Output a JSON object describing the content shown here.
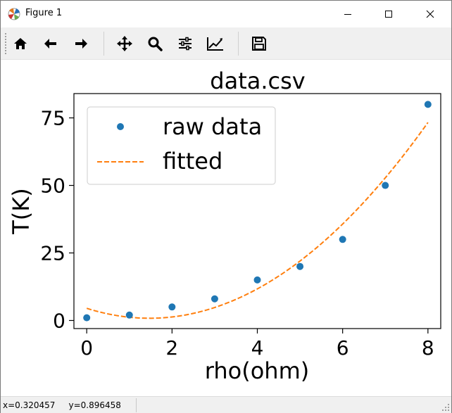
{
  "window": {
    "title": "Figure 1"
  },
  "toolbar": {
    "items": [
      {
        "name": "home-icon",
        "tooltip": "Home"
      },
      {
        "name": "back-arrow-icon",
        "tooltip": "Back"
      },
      {
        "name": "forward-arrow-icon",
        "tooltip": "Forward"
      },
      {
        "name": "pan-icon",
        "tooltip": "Pan"
      },
      {
        "name": "zoom-icon",
        "tooltip": "Zoom"
      },
      {
        "name": "configure-subplots-icon",
        "tooltip": "Subplots"
      },
      {
        "name": "edit-axis-icon",
        "tooltip": "Customize"
      },
      {
        "name": "save-icon",
        "tooltip": "Save"
      }
    ]
  },
  "status": {
    "text": "x=0.320457     y=0.896458"
  },
  "chart_data": {
    "type": "scatter",
    "title": "data.csv",
    "xlabel": "rho(ohm)",
    "ylabel": "T(K)",
    "xlim": [
      -0.3,
      8.3
    ],
    "ylim": [
      -3,
      84
    ],
    "xticks": [
      0,
      2,
      4,
      6,
      8
    ],
    "yticks": [
      0,
      25,
      50,
      75
    ],
    "legend_position": "upper-left",
    "grid": false,
    "series": [
      {
        "name": "raw data",
        "kind": "points",
        "color": "#1f77b4",
        "x": [
          0,
          1,
          2,
          3,
          4,
          5,
          6,
          7,
          8
        ],
        "y": [
          1,
          2,
          5,
          8,
          15,
          20,
          30,
          50,
          80
        ]
      },
      {
        "name": "fitted",
        "kind": "dashed-line",
        "color": "#ff7f0e",
        "fit": {
          "a": 1.7,
          "b": -5.0,
          "c": 4.5
        },
        "x_range": [
          0,
          8
        ]
      }
    ]
  }
}
